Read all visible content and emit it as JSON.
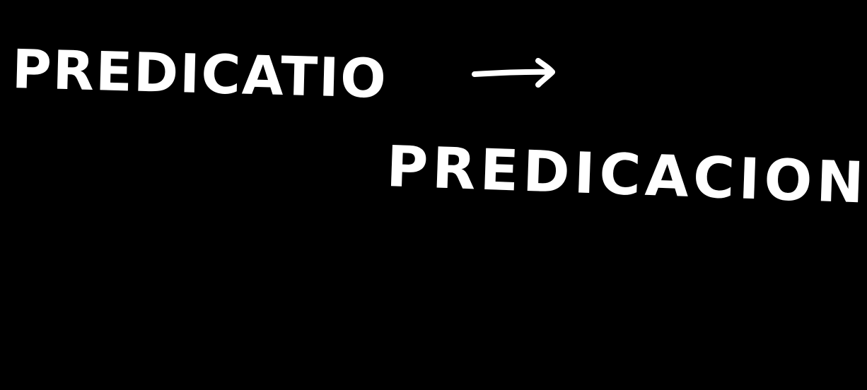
{
  "background_color": "#000000",
  "ink_color": "#ffffff",
  "note": {
    "source_word": "PREDICATIO",
    "arrow_icon": "right-arrow-icon",
    "result_word": "PREDICACION"
  }
}
